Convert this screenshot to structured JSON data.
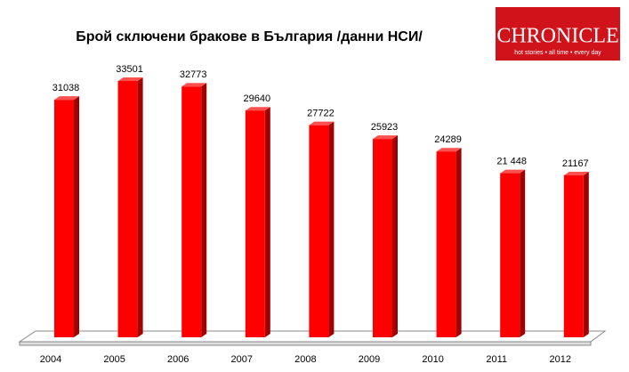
{
  "chart_data": {
    "type": "bar",
    "title": "Брой сключени бракове в България /данни НСИ/",
    "categories": [
      "2004",
      "2005",
      "2006",
      "2007",
      "2008",
      "2009",
      "2010",
      "2011",
      "2012"
    ],
    "values": [
      31038,
      33501,
      32773,
      29640,
      27722,
      25923,
      24289,
      21448,
      21167
    ],
    "value_labels": [
      "31038",
      "33501",
      "32773",
      "29640",
      "27722",
      "25923",
      "24289",
      "21 448",
      "21167"
    ],
    "color": "#ff0000"
  },
  "logo": {
    "name": "CHRONICLE",
    "tagline": "hot stories • all time • every day"
  }
}
